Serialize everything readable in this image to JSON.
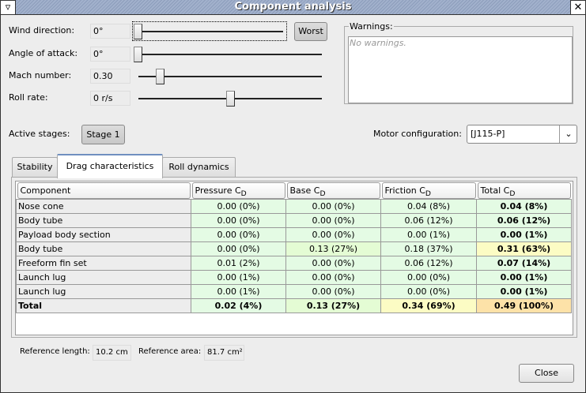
{
  "window": {
    "title": "Component analysis",
    "menu_icon": "triangle-down-icon",
    "close_icon": "close-icon"
  },
  "params": [
    {
      "label": "Wind direction:",
      "value": "0°",
      "slider_fraction": 0.0
    },
    {
      "label": "Angle of attack:",
      "value": "0°",
      "slider_fraction": 0.0
    },
    {
      "label": "Mach number:",
      "value": "0.30",
      "slider_fraction": 0.1
    },
    {
      "label": "Roll rate:",
      "value": "0 r/s",
      "slider_fraction": 0.5
    }
  ],
  "worst_button": "Worst",
  "warnings": {
    "label": "Warnings:",
    "text": "No warnings."
  },
  "stages": {
    "label": "Active stages:",
    "button": "Stage 1"
  },
  "motor": {
    "label": "Motor configuration:",
    "value": "[J115-P]"
  },
  "tabs": [
    "Stability",
    "Drag characteristics",
    "Roll dynamics"
  ],
  "selected_tab": "Drag characteristics",
  "table": {
    "headers": [
      {
        "t": "Component",
        "s": ""
      },
      {
        "t": "Pressure C",
        "s": "D"
      },
      {
        "t": "Base C",
        "s": "D"
      },
      {
        "t": "Friction C",
        "s": "D"
      },
      {
        "t": "Total C",
        "s": "D"
      }
    ],
    "rows": [
      {
        "c": [
          "Nose cone",
          "0.00 (0%)",
          "0.00 (0%)",
          "0.04 (8%)",
          "0.04 (8%)"
        ],
        "bg": [
          "c0",
          "g",
          "g",
          "g",
          "g"
        ]
      },
      {
        "c": [
          "Body tube",
          "0.00 (0%)",
          "0.00 (0%)",
          "0.06 (12%)",
          "0.06 (12%)"
        ],
        "bg": [
          "c0",
          "g",
          "g",
          "g",
          "g"
        ]
      },
      {
        "c": [
          "Payload body section",
          "0.00 (0%)",
          "0.00 (0%)",
          "0.00 (1%)",
          "0.00 (1%)"
        ],
        "bg": [
          "c0",
          "g",
          "g",
          "g",
          "g"
        ]
      },
      {
        "c": [
          "Body tube",
          "0.00 (0%)",
          "0.13 (27%)",
          "0.18 (37%)",
          "0.31 (63%)"
        ],
        "bg": [
          "c0",
          "g",
          "yg",
          "g",
          "y"
        ]
      },
      {
        "c": [
          "Freeform fin set",
          "0.01 (2%)",
          "0.00 (0%)",
          "0.06 (12%)",
          "0.07 (14%)"
        ],
        "bg": [
          "c0",
          "g",
          "g",
          "g",
          "g"
        ]
      },
      {
        "c": [
          "Launch lug",
          "0.00 (1%)",
          "0.00 (0%)",
          "0.00 (0%)",
          "0.00 (1%)"
        ],
        "bg": [
          "c0",
          "g",
          "g",
          "g",
          "g"
        ]
      },
      {
        "c": [
          "Launch lug",
          "0.00 (1%)",
          "0.00 (0%)",
          "0.00 (0%)",
          "0.00 (1%)"
        ],
        "bg": [
          "c0",
          "g",
          "g",
          "g",
          "g"
        ]
      },
      {
        "c": [
          "Total",
          "0.02 (4%)",
          "0.13 (27%)",
          "0.34 (69%)",
          "0.49 (100%)"
        ],
        "bg": [
          "c0",
          "g",
          "yg",
          "y",
          "o"
        ],
        "total": true
      }
    ]
  },
  "reference": {
    "length_label": "Reference length:",
    "length": "10.2 cm",
    "area_label": "Reference area:",
    "area": "81.7 cm²"
  },
  "close_button": "Close"
}
